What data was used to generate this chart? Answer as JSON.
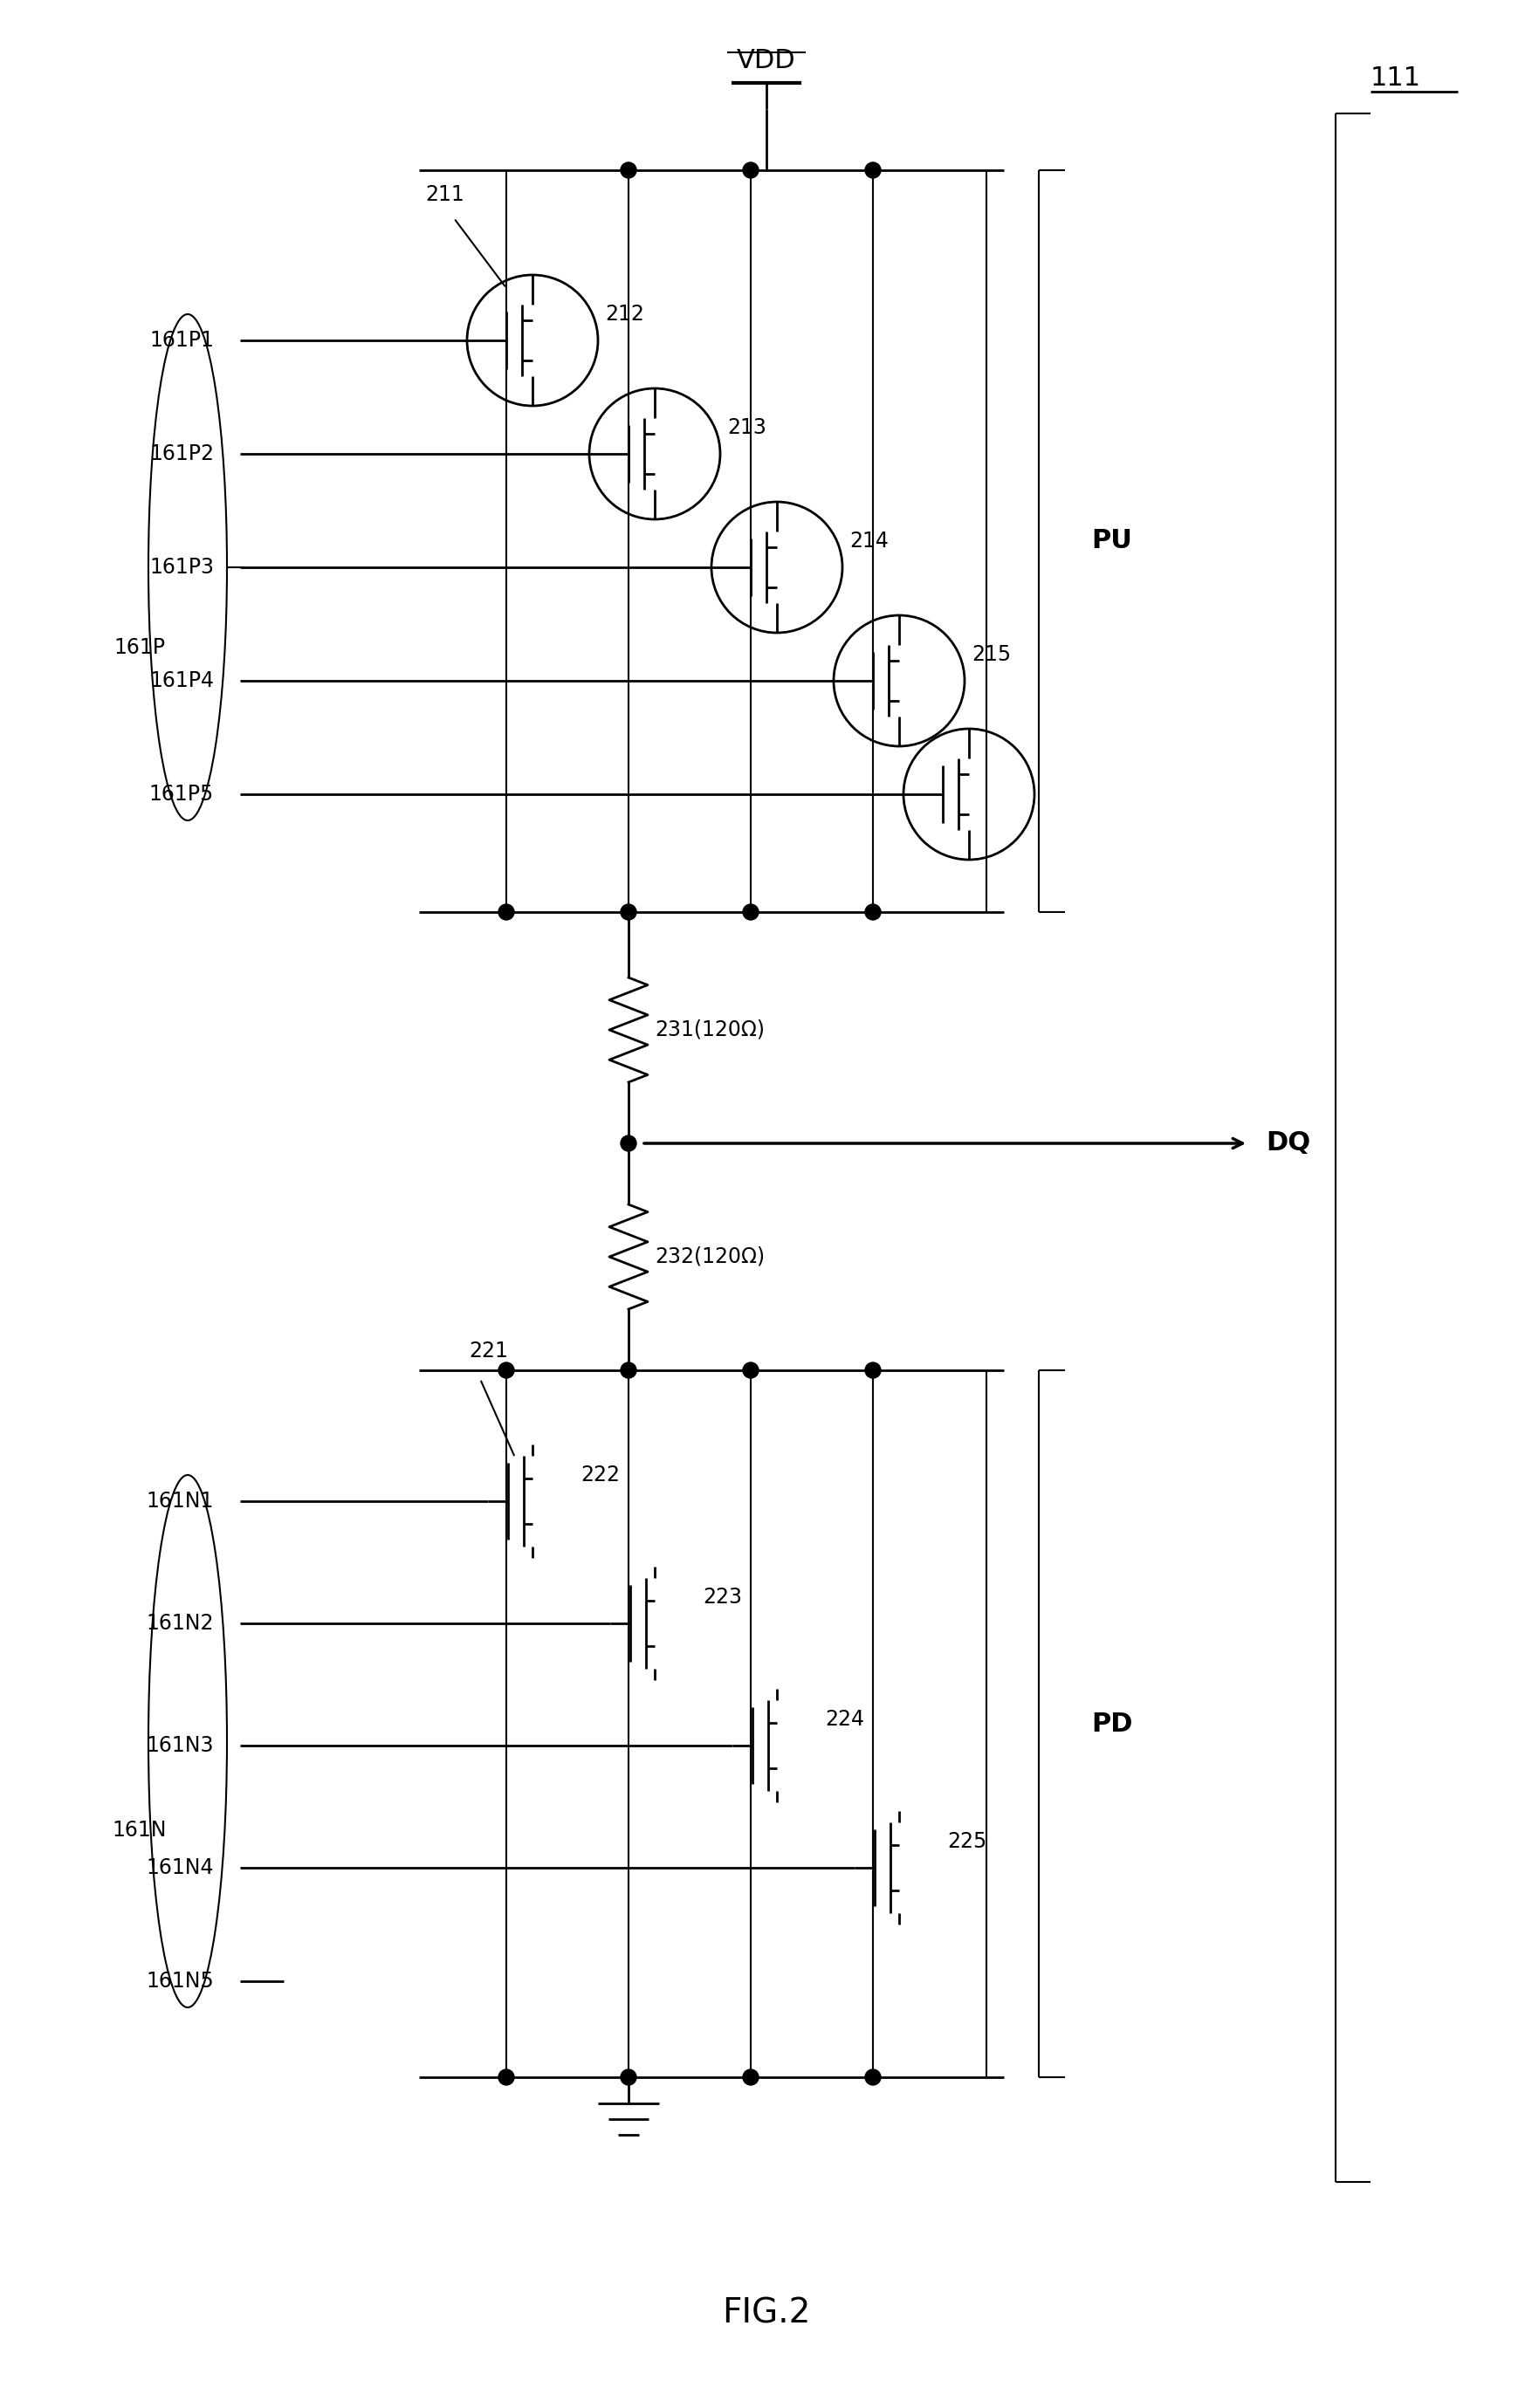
{
  "title": "FIG.2",
  "bg_color": "#ffffff",
  "line_color": "#000000",
  "fig_width": 17.56,
  "fig_height": 27.59,
  "label_111": "111",
  "label_vdd": "VDD",
  "label_dq": "DQ",
  "label_pu": "PU",
  "label_pd": "PD",
  "label_161p": "161P",
  "label_161n": "161N",
  "label_161p1": "161P1",
  "label_161p2": "161P2",
  "label_161p3": "161P3",
  "label_161p4": "161P4",
  "label_161p5": "161P5",
  "label_161n1": "161N1",
  "label_161n2": "161N2",
  "label_161n3": "161N3",
  "label_161n4": "161N4",
  "label_161n5": "161N5",
  "label_211": "211",
  "label_212": "212",
  "label_213": "213",
  "label_214": "214",
  "label_215": "215",
  "label_221": "221",
  "label_222": "222",
  "label_223": "223",
  "label_224": "224",
  "label_225": "225",
  "label_231": "231(120Ω)",
  "label_232": "232(120Ω)"
}
